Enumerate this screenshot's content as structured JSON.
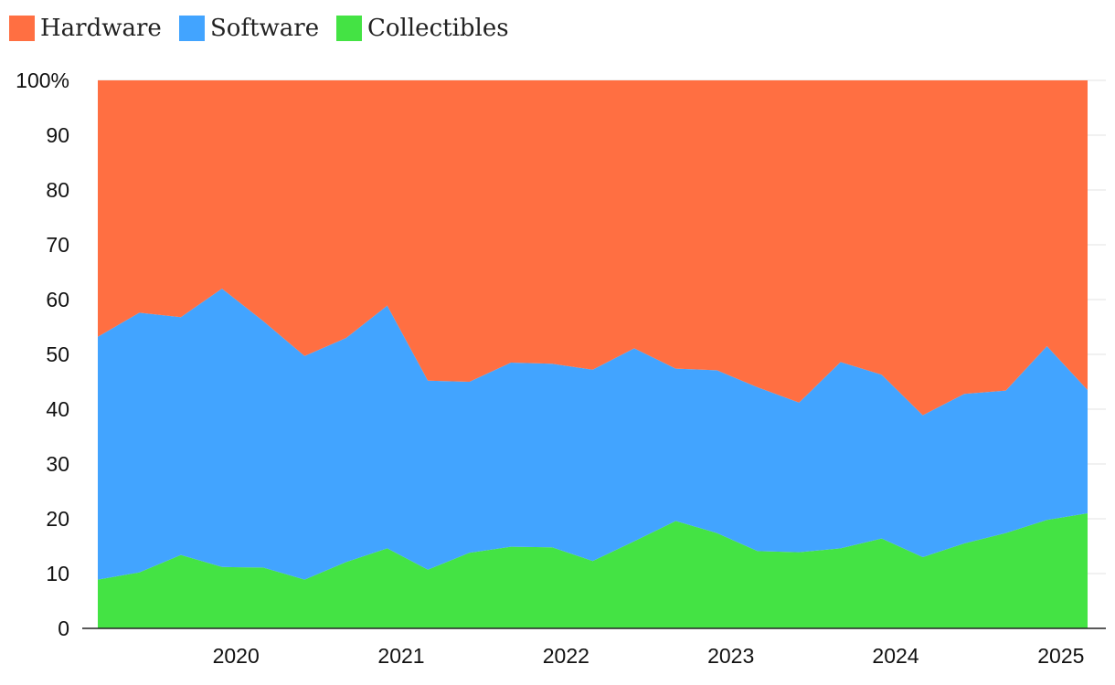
{
  "chart_data": {
    "type": "area",
    "stacked": true,
    "normalized": true,
    "title": "",
    "xlabel": "",
    "ylabel": "",
    "x": [
      "2019-03",
      "2019-06",
      "2019-09",
      "2019-12",
      "2020-03",
      "2020-06",
      "2020-09",
      "2020-12",
      "2021-03",
      "2021-06",
      "2021-09",
      "2021-12",
      "2022-03",
      "2022-06",
      "2022-09",
      "2022-12",
      "2023-03",
      "2023-06",
      "2023-09",
      "2023-12",
      "2024-03",
      "2024-06",
      "2024-09",
      "2024-12",
      "2025-03"
    ],
    "x_ticks": [
      "2020",
      "2021",
      "2022",
      "2023",
      "2024",
      "2025"
    ],
    "y_ticks": [
      "0",
      "10",
      "20",
      "30",
      "40",
      "50",
      "60",
      "70",
      "80",
      "90",
      "100%"
    ],
    "ylim": [
      0,
      100
    ],
    "grid": true,
    "legend_position": "top-left",
    "series": [
      {
        "name": "Collectibles",
        "color": "#44e344",
        "values": [
          8.9,
          10.2,
          13.4,
          11.2,
          11.1,
          8.9,
          12.1,
          14.6,
          10.7,
          13.8,
          14.9,
          14.8,
          12.3,
          15.9,
          19.6,
          17.4,
          14.1,
          13.9,
          14.6,
          16.4,
          13.0,
          15.5,
          17.4,
          19.8,
          21.0
        ]
      },
      {
        "name": "Software",
        "color": "#42a4ff",
        "values": [
          44.3,
          47.4,
          43.4,
          50.8,
          45.0,
          40.8,
          40.9,
          44.3,
          34.5,
          31.2,
          33.6,
          33.5,
          34.9,
          35.2,
          27.8,
          29.7,
          29.9,
          27.3,
          34.0,
          29.9,
          25.9,
          27.3,
          26.0,
          31.7,
          22.5
        ]
      },
      {
        "name": "Hardware",
        "color": "#ff6f42",
        "values": [
          46.8,
          42.4,
          43.2,
          38.0,
          43.9,
          50.3,
          47.0,
          41.1,
          54.8,
          55.0,
          51.5,
          51.7,
          52.8,
          48.9,
          52.6,
          52.9,
          56.0,
          58.8,
          51.4,
          53.7,
          61.1,
          57.2,
          56.6,
          48.5,
          56.5
        ]
      }
    ],
    "legend": [
      "Hardware",
      "Software",
      "Collectibles"
    ]
  }
}
